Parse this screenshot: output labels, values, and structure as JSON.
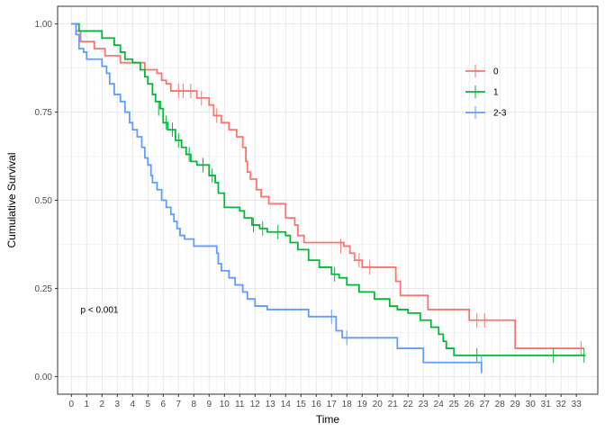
{
  "chart_data": {
    "type": "line",
    "xlabel": "Time",
    "ylabel": "Cumulative Survival",
    "xlim": [
      -0.9,
      34.4
    ],
    "ylim": [
      -0.05,
      1.05
    ],
    "xticks": [
      0,
      1,
      2,
      3,
      4,
      5,
      6,
      7,
      8,
      9,
      10,
      11,
      12,
      13,
      14,
      15,
      16,
      17,
      18,
      19,
      20,
      21,
      22,
      23,
      24,
      25,
      26,
      27,
      28,
      29,
      30,
      31,
      32,
      33
    ],
    "xtick_labels": [
      "0",
      "1",
      "2",
      "3",
      "4",
      "5",
      "6",
      "7",
      "8",
      "9",
      "10",
      "11",
      "12",
      "13",
      "14",
      "15",
      "16",
      "17",
      "18",
      "19",
      "20",
      "21",
      "22",
      "23",
      "24",
      "25",
      "26",
      "27",
      "28",
      "29",
      "30",
      "31",
      "32",
      "33"
    ],
    "yticks": [
      0,
      0.25,
      0.5,
      0.75,
      1
    ],
    "ytick_labels": [
      "0.00",
      "0.25",
      "0.50",
      "0.75",
      "1.00"
    ],
    "grid": true,
    "legend_position": "right",
    "annotation": {
      "text": "p < 0.001",
      "x": 0.6,
      "y": 0.19
    },
    "series": [
      {
        "name": "0",
        "color": "#F8766D",
        "steps": [
          [
            0,
            1.0
          ],
          [
            0.3,
            0.98
          ],
          [
            0.6,
            0.95
          ],
          [
            1.5,
            0.93
          ],
          [
            2.2,
            0.91
          ],
          [
            3.2,
            0.89
          ],
          [
            4.8,
            0.87
          ],
          [
            5.6,
            0.86
          ],
          [
            5.9,
            0.84
          ],
          [
            6.2,
            0.83
          ],
          [
            6.5,
            0.81
          ],
          [
            8.2,
            0.79
          ],
          [
            9.0,
            0.77
          ],
          [
            9.3,
            0.74
          ],
          [
            9.8,
            0.72
          ],
          [
            10.3,
            0.7
          ],
          [
            10.8,
            0.68
          ],
          [
            11.2,
            0.65
          ],
          [
            11.4,
            0.61
          ],
          [
            11.5,
            0.58
          ],
          [
            11.7,
            0.56
          ],
          [
            12.1,
            0.53
          ],
          [
            12.4,
            0.51
          ],
          [
            12.9,
            0.49
          ],
          [
            14.0,
            0.45
          ],
          [
            14.6,
            0.43
          ],
          [
            14.8,
            0.4
          ],
          [
            15.2,
            0.38
          ],
          [
            17.8,
            0.37
          ],
          [
            18.2,
            0.35
          ],
          [
            18.5,
            0.33
          ],
          [
            19.0,
            0.31
          ],
          [
            21.2,
            0.27
          ],
          [
            21.5,
            0.23
          ],
          [
            23.3,
            0.19
          ],
          [
            26.0,
            0.16
          ],
          [
            29.0,
            0.08
          ],
          [
            33.5,
            0.08
          ]
        ],
        "censor": [
          [
            7.0,
            0.81
          ],
          [
            7.3,
            0.81
          ],
          [
            7.8,
            0.81
          ],
          [
            8.5,
            0.79
          ],
          [
            9.5,
            0.74
          ],
          [
            17.6,
            0.37
          ],
          [
            18.8,
            0.33
          ],
          [
            19.5,
            0.31
          ],
          [
            26.5,
            0.16
          ],
          [
            27.0,
            0.16
          ],
          [
            33.3,
            0.08
          ]
        ]
      },
      {
        "name": "1",
        "color": "#00BA38",
        "steps": [
          [
            0,
            1.0
          ],
          [
            0.5,
            0.98
          ],
          [
            2.0,
            0.96
          ],
          [
            2.8,
            0.94
          ],
          [
            3.2,
            0.92
          ],
          [
            3.5,
            0.9
          ],
          [
            4.0,
            0.89
          ],
          [
            4.5,
            0.87
          ],
          [
            4.8,
            0.85
          ],
          [
            5.0,
            0.83
          ],
          [
            5.3,
            0.8
          ],
          [
            5.5,
            0.78
          ],
          [
            5.8,
            0.76
          ],
          [
            6.0,
            0.72
          ],
          [
            6.3,
            0.7
          ],
          [
            6.8,
            0.67
          ],
          [
            7.2,
            0.65
          ],
          [
            7.5,
            0.63
          ],
          [
            7.8,
            0.61
          ],
          [
            8.2,
            0.6
          ],
          [
            9.0,
            0.57
          ],
          [
            9.4,
            0.55
          ],
          [
            9.6,
            0.52
          ],
          [
            10.0,
            0.48
          ],
          [
            11.0,
            0.47
          ],
          [
            11.3,
            0.45
          ],
          [
            11.8,
            0.43
          ],
          [
            12.3,
            0.42
          ],
          [
            12.8,
            0.41
          ],
          [
            14.0,
            0.4
          ],
          [
            14.3,
            0.38
          ],
          [
            14.8,
            0.36
          ],
          [
            15.5,
            0.33
          ],
          [
            16.2,
            0.31
          ],
          [
            17.0,
            0.29
          ],
          [
            17.5,
            0.28
          ],
          [
            18.0,
            0.26
          ],
          [
            18.8,
            0.24
          ],
          [
            19.8,
            0.22
          ],
          [
            20.8,
            0.2
          ],
          [
            21.3,
            0.19
          ],
          [
            22.0,
            0.18
          ],
          [
            22.8,
            0.16
          ],
          [
            23.5,
            0.14
          ],
          [
            24.0,
            0.12
          ],
          [
            24.3,
            0.1
          ],
          [
            24.5,
            0.08
          ],
          [
            25.0,
            0.06
          ],
          [
            33.6,
            0.06
          ]
        ],
        "censor": [
          [
            5.7,
            0.76
          ],
          [
            6.2,
            0.72
          ],
          [
            6.6,
            0.7
          ],
          [
            7.0,
            0.67
          ],
          [
            7.7,
            0.63
          ],
          [
            8.6,
            0.6
          ],
          [
            9.2,
            0.57
          ],
          [
            11.9,
            0.43
          ],
          [
            12.5,
            0.42
          ],
          [
            13.5,
            0.41
          ],
          [
            17.2,
            0.29
          ],
          [
            26.5,
            0.06
          ],
          [
            31.5,
            0.06
          ],
          [
            33.5,
            0.06
          ]
        ]
      },
      {
        "name": "2-3",
        "color": "#619CFF",
        "steps": [
          [
            0,
            1.0
          ],
          [
            0.3,
            0.97
          ],
          [
            0.5,
            0.93
          ],
          [
            0.8,
            0.92
          ],
          [
            1.0,
            0.9
          ],
          [
            2.0,
            0.88
          ],
          [
            2.3,
            0.86
          ],
          [
            2.5,
            0.83
          ],
          [
            2.8,
            0.8
          ],
          [
            3.2,
            0.78
          ],
          [
            3.5,
            0.75
          ],
          [
            3.8,
            0.72
          ],
          [
            4.0,
            0.7
          ],
          [
            4.3,
            0.68
          ],
          [
            4.6,
            0.65
          ],
          [
            4.8,
            0.62
          ],
          [
            5.0,
            0.6
          ],
          [
            5.2,
            0.57
          ],
          [
            5.3,
            0.55
          ],
          [
            5.6,
            0.53
          ],
          [
            5.9,
            0.5
          ],
          [
            6.2,
            0.48
          ],
          [
            6.5,
            0.46
          ],
          [
            6.7,
            0.44
          ],
          [
            6.9,
            0.42
          ],
          [
            7.1,
            0.4
          ],
          [
            7.4,
            0.39
          ],
          [
            8.0,
            0.37
          ],
          [
            9.5,
            0.35
          ],
          [
            9.6,
            0.32
          ],
          [
            9.8,
            0.3
          ],
          [
            10.3,
            0.28
          ],
          [
            10.7,
            0.26
          ],
          [
            11.2,
            0.24
          ],
          [
            11.5,
            0.22
          ],
          [
            12.0,
            0.2
          ],
          [
            12.8,
            0.19
          ],
          [
            15.5,
            0.17
          ],
          [
            17.3,
            0.13
          ],
          [
            17.7,
            0.11
          ],
          [
            21.3,
            0.08
          ],
          [
            23.0,
            0.04
          ],
          [
            26.8,
            0.01
          ]
        ],
        "censor": [
          [
            17.0,
            0.17
          ],
          [
            18.0,
            0.11
          ],
          [
            26.8,
            0.04
          ]
        ]
      }
    ]
  }
}
